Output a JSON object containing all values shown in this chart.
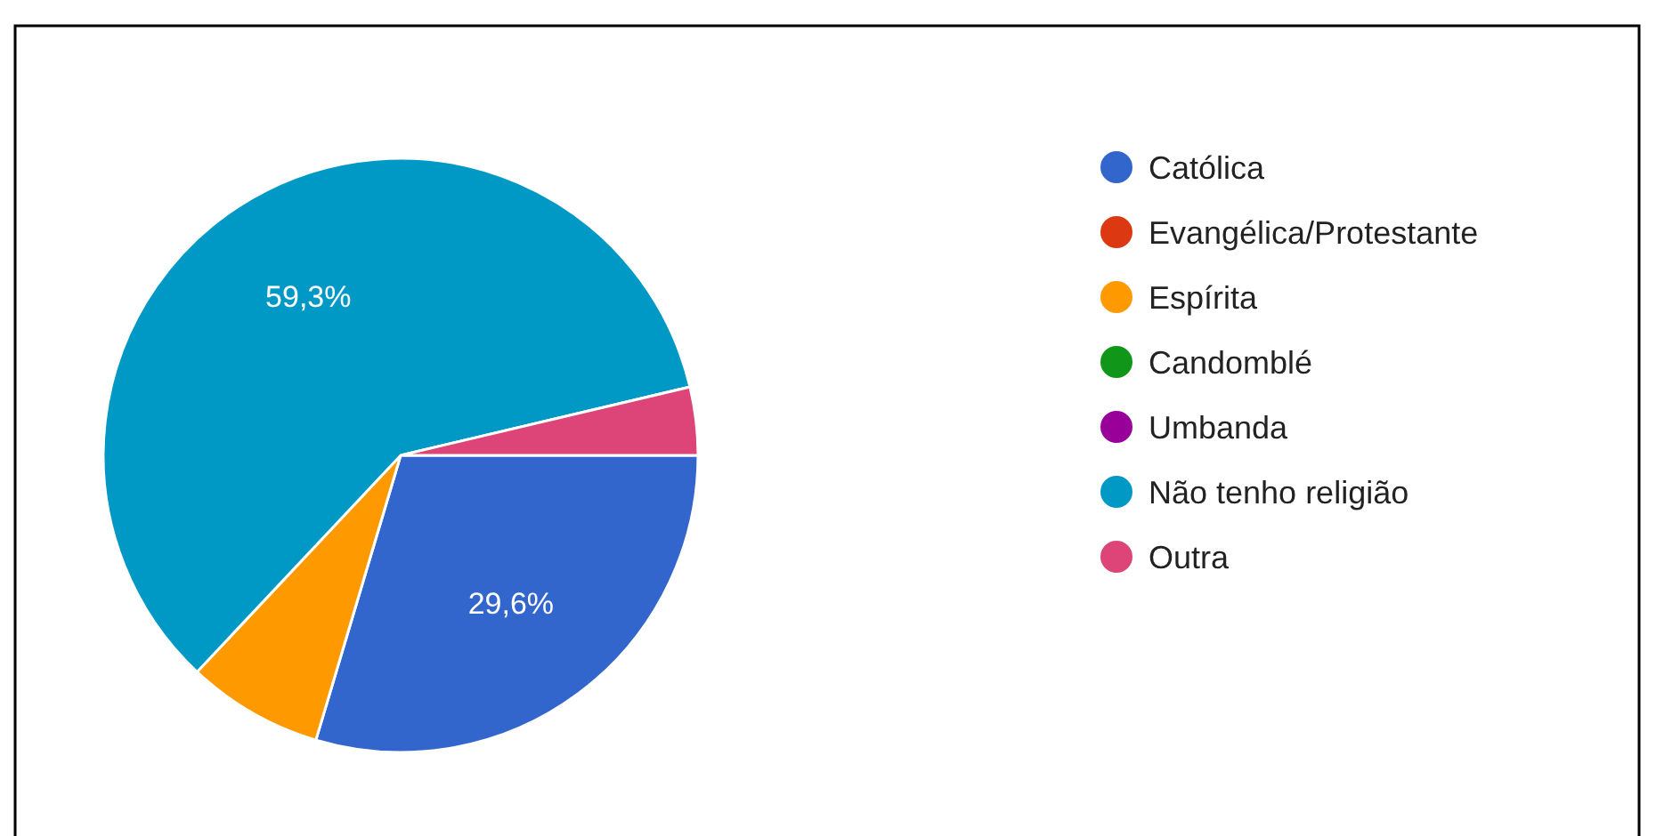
{
  "chart_data": {
    "type": "pie",
    "categories": [
      "Católica",
      "Evangélica/Protestante",
      "Espírita",
      "Candomblé",
      "Umbanda",
      "Não tenho religião",
      "Outra"
    ],
    "values": [
      29.6,
      0,
      7.4,
      0,
      0,
      59.3,
      3.7
    ],
    "colors": [
      "#3366cc",
      "#dc3912",
      "#ff9900",
      "#109618",
      "#990099",
      "#0099c6",
      "#dd4477"
    ],
    "value_labels": [
      "29,6%",
      null,
      null,
      null,
      null,
      "59,3%",
      null
    ],
    "legend": "right"
  }
}
